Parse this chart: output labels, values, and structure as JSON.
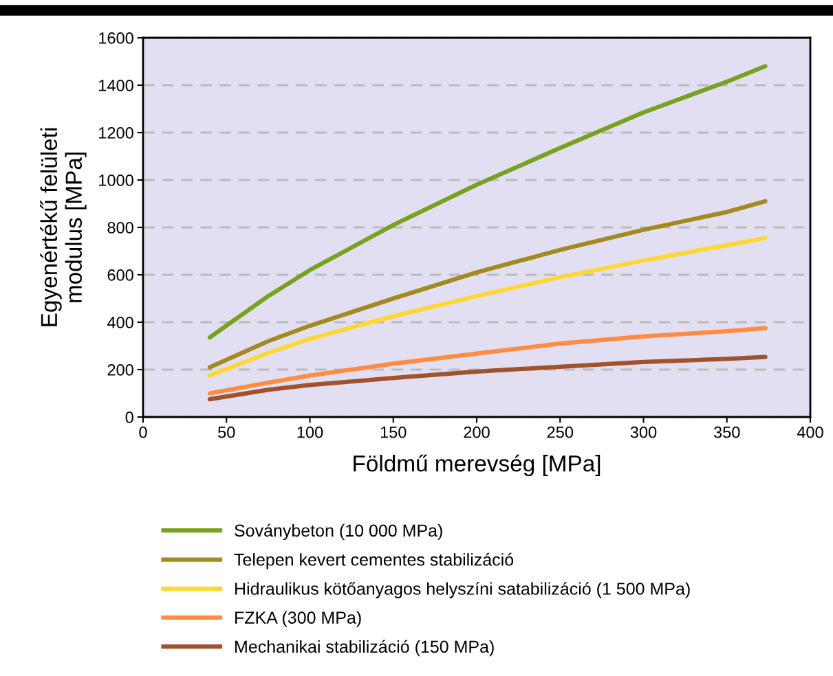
{
  "chart_data": {
    "type": "line",
    "xlabel": "Földmű merevség [MPa]",
    "ylabel": "Egyenértékű felületi\nmodulus [MPa]",
    "xlim": [
      0,
      400
    ],
    "xticks": [
      0,
      50,
      100,
      150,
      200,
      250,
      300,
      350,
      400
    ],
    "ylim": [
      0,
      1600
    ],
    "yticks": [
      0,
      200,
      400,
      600,
      800,
      1000,
      1200,
      1400,
      1600
    ],
    "grid": "y",
    "legend": "bottom",
    "line_style": "solid",
    "marker": "none",
    "x": [
      40,
      75,
      100,
      150,
      200,
      250,
      300,
      350,
      373
    ],
    "series": [
      {
        "name": "Soványbeton (10 000 MPa)",
        "color": "#76a21e",
        "values": [
          336,
          510,
          620,
          810,
          980,
          1135,
          1285,
          1415,
          1480
        ]
      },
      {
        "name": "Telepen kevert cementes stabilizáció",
        "color": "#a38a1e",
        "values": [
          210,
          320,
          385,
          500,
          610,
          705,
          790,
          865,
          910
        ]
      },
      {
        "name": "Hidraulikus kötőanyagos helyszíni satabilizáció (1 500 MPa)",
        "color": "#fdd835",
        "values": [
          175,
          270,
          330,
          425,
          510,
          590,
          660,
          725,
          755
        ]
      },
      {
        "name": "FZKA (300 MPa)",
        "color": "#ff8c42",
        "values": [
          100,
          145,
          175,
          225,
          268,
          310,
          340,
          362,
          375
        ]
      },
      {
        "name": "Mechanikai stabilizáció (150 MPa)",
        "color": "#a0522d",
        "values": [
          75,
          115,
          135,
          165,
          192,
          212,
          232,
          245,
          253
        ]
      }
    ]
  }
}
